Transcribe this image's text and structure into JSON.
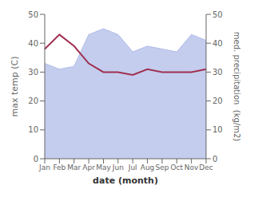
{
  "chart_data": {
    "type": "line",
    "categories": [
      "Jan",
      "Feb",
      "Mar",
      "Apr",
      "May",
      "Jun",
      "Jul",
      "Aug",
      "Sep",
      "Oct",
      "Nov",
      "Dec"
    ],
    "xlabel": "date (month)",
    "ylabel": "max temp (C)",
    "y2label": "med. precipitation  (kg/m2)",
    "ylim": [
      0,
      50
    ],
    "yticks": [
      0,
      10,
      20,
      30,
      40,
      50
    ],
    "y2lim": [
      0,
      50
    ],
    "y2ticks": [
      0,
      10,
      20,
      30,
      40,
      50
    ],
    "grid": false,
    "series": [
      {
        "type": "area",
        "axis": "y2",
        "color": "#b0bce8",
        "values": [
          33,
          31,
          32,
          43,
          45,
          43,
          37,
          39,
          38,
          37,
          43,
          41
        ]
      },
      {
        "type": "line",
        "color": "#a03050",
        "values": [
          38,
          43,
          39,
          33,
          30,
          30,
          29,
          31,
          30,
          30,
          30,
          31
        ]
      }
    ]
  }
}
